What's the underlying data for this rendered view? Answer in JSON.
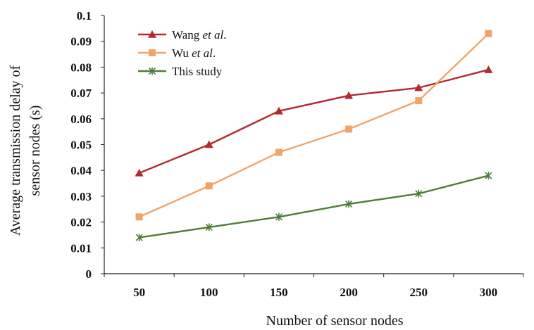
{
  "chart_data": {
    "type": "line",
    "categories": [
      "50",
      "100",
      "150",
      "200",
      "250",
      "300"
    ],
    "x": [
      50,
      100,
      150,
      200,
      250,
      300
    ],
    "series": [
      {
        "name": "Wang et al.",
        "name_main": "Wang ",
        "name_italic": "et al",
        "name_tail": ".",
        "color": "#b22a2e",
        "marker": "triangle",
        "values": [
          0.039,
          0.05,
          0.063,
          0.069,
          0.072,
          0.079
        ]
      },
      {
        "name": "Wu et al.",
        "name_main": "Wu ",
        "name_italic": "et al",
        "name_tail": ".",
        "color": "#f0a46a",
        "marker": "square",
        "values": [
          0.022,
          0.034,
          0.047,
          0.056,
          0.067,
          0.093
        ]
      },
      {
        "name": "This study",
        "name_main": "This study",
        "name_italic": "",
        "name_tail": "",
        "color": "#4e7d3a",
        "marker": "star",
        "values": [
          0.014,
          0.018,
          0.022,
          0.027,
          0.031,
          0.038
        ]
      }
    ],
    "xlabel": "Number of sensor nodes",
    "ylabel_line1": "Average transmission delay of",
    "ylabel_line2": "sensor nodes (s)",
    "ylim": [
      0,
      0.1
    ],
    "yticks": [
      "0",
      "0.01",
      "0.02",
      "0.03",
      "0.04",
      "0.05",
      "0.06",
      "0.07",
      "0.08",
      "0.09",
      "0.1"
    ],
    "grid": false,
    "legend_position": "top-left"
  }
}
